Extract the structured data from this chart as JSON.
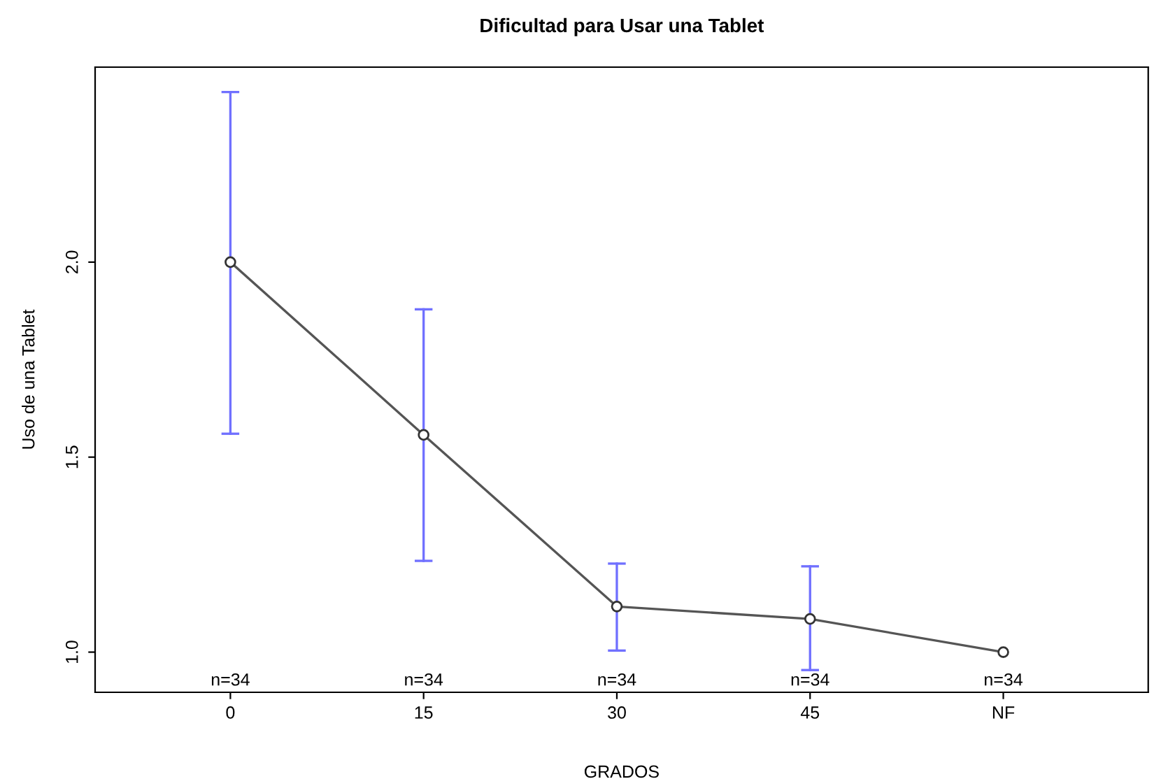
{
  "chart_data": {
    "type": "line",
    "title": "Dificultad para Usar una Tablet",
    "xlabel": "GRADOS",
    "ylabel": "Uso de una Tablet",
    "categories": [
      "0",
      "15",
      "30",
      "45",
      "NF"
    ],
    "series": [
      {
        "color": "#555555",
        "values": [
          2.0,
          1.557,
          1.117,
          1.085,
          1.0
        ],
        "errors": [
          [
            1.56,
            2.436
          ],
          [
            1.234,
            1.879
          ],
          [
            1.004,
            1.227
          ],
          [
            0.954,
            1.22
          ],
          null
        ]
      }
    ],
    "ylim": [
      0.897,
      2.5
    ],
    "yticks": [
      {
        "value": 1.0,
        "label": "1.0"
      },
      {
        "value": 1.5,
        "label": "1.5"
      },
      {
        "value": 2.0,
        "label": "2.0"
      }
    ],
    "marker": "circle",
    "grid": false,
    "legend": false,
    "annotations": [
      "n=34",
      "n=34",
      "n=34",
      "n=34",
      "n=34"
    ]
  }
}
